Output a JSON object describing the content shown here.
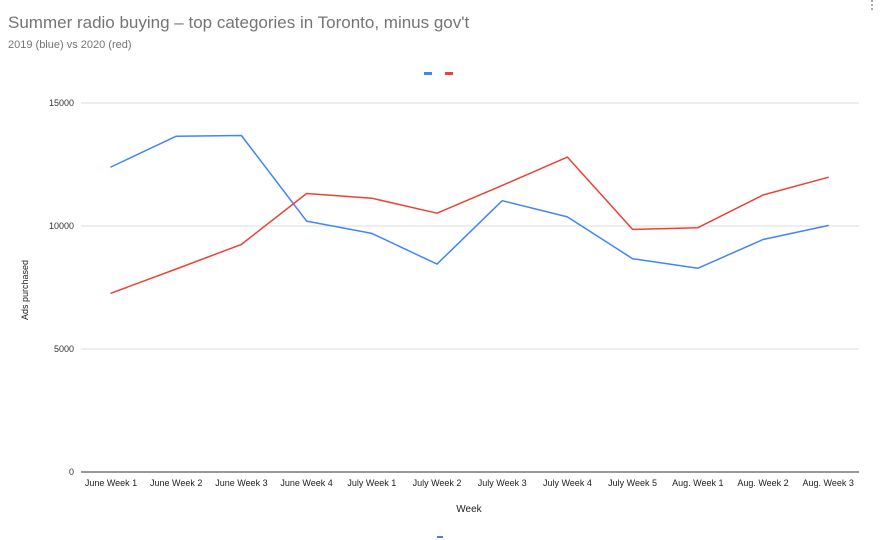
{
  "chart_title": "Summer radio buying – top categories in Toronto, minus gov't",
  "chart_subtitle": "2019 (blue) vs 2020 (red)",
  "menu_icon": "more-vert-icon",
  "chart_data": {
    "type": "line",
    "title": "Summer radio buying – top categories in Toronto, minus gov't",
    "subtitle": "2019 (blue) vs 2020 (red)",
    "xlabel": "Week",
    "ylabel": "Ads purchased",
    "ylim": [
      0,
      15000
    ],
    "yticks": [
      0,
      5000,
      10000,
      15000
    ],
    "grid": true,
    "legend_position": "top",
    "categories": [
      "June Week 1",
      "June Week 2",
      "June Week 3",
      "June Week 4",
      "July Week 1",
      "July Week 2",
      "July Week 3",
      "July Week 4",
      "July Week 5",
      "Aug. Week 1",
      "Aug. Week 2",
      "Aug. Week 3"
    ],
    "series": [
      {
        "color": "#4285f4",
        "values": [
          12400,
          13650,
          13680,
          10200,
          9700,
          8450,
          11030,
          10370,
          8670,
          8280,
          9450,
          10020
        ]
      },
      {
        "color": "#ea4335",
        "values": [
          7270,
          8250,
          9250,
          11320,
          11130,
          10520,
          11650,
          12800,
          9860,
          9930,
          11260,
          11980
        ]
      }
    ]
  }
}
